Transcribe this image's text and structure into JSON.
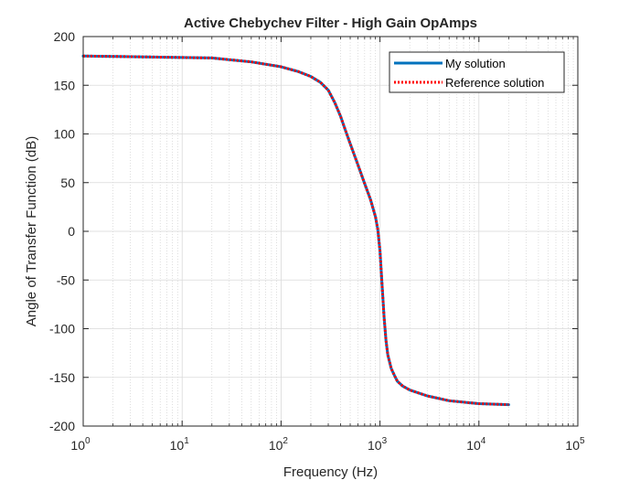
{
  "chart_data": {
    "type": "line",
    "title": "Active Chebychev Filter - High Gain OpAmps",
    "xlabel": "Frequency (Hz)",
    "ylabel": "Angle of Transfer Function (dB)",
    "xscale": "log",
    "xlim": [
      1,
      100000
    ],
    "ylim": [
      -200,
      200
    ],
    "xticks": [
      {
        "value": 1,
        "base": "10",
        "exp": "0"
      },
      {
        "value": 10,
        "base": "10",
        "exp": "1"
      },
      {
        "value": 100,
        "base": "10",
        "exp": "2"
      },
      {
        "value": 1000,
        "base": "10",
        "exp": "3"
      },
      {
        "value": 10000,
        "base": "10",
        "exp": "4"
      },
      {
        "value": 100000,
        "base": "10",
        "exp": "5"
      }
    ],
    "yticks": [
      200,
      150,
      100,
      50,
      0,
      -50,
      -100,
      -150,
      -200
    ],
    "grid": true,
    "minor_grid": true,
    "legend_position": "top-right",
    "series": [
      {
        "name": "My solution",
        "color": "#0072BD",
        "style": "solid",
        "x": [
          1,
          2,
          5,
          10,
          20,
          50,
          100,
          150,
          200,
          250,
          300,
          350,
          400,
          450,
          500,
          600,
          700,
          800,
          900,
          950,
          1000,
          1050,
          1100,
          1150,
          1200,
          1300,
          1400,
          1500,
          1700,
          2000,
          3000,
          5000,
          10000,
          20000
        ],
        "y": [
          180,
          179.6,
          179,
          178.5,
          178,
          174,
          169,
          164,
          159,
          153,
          145,
          132,
          118,
          103,
          90,
          68,
          49,
          33,
          15,
          2,
          -20,
          -55,
          -88,
          -112,
          -127,
          -141,
          -148,
          -154,
          -159,
          -163,
          -169,
          -174,
          -177,
          -178
        ]
      },
      {
        "name": "Reference solution",
        "color": "#FF0000",
        "style": "dotted",
        "x": [
          1,
          2,
          5,
          10,
          20,
          50,
          100,
          150,
          200,
          250,
          300,
          350,
          400,
          450,
          500,
          600,
          700,
          800,
          900,
          950,
          1000,
          1050,
          1100,
          1150,
          1200,
          1300,
          1400,
          1500,
          1700,
          2000,
          3000,
          5000,
          10000,
          20000
        ],
        "y": [
          180,
          179.6,
          179,
          178.5,
          178,
          174,
          169,
          164,
          159,
          153,
          145,
          132,
          118,
          103,
          90,
          68,
          49,
          33,
          15,
          2,
          -20,
          -55,
          -88,
          -112,
          -127,
          -141,
          -148,
          -154,
          -159,
          -163,
          -169,
          -174,
          -177,
          -178
        ]
      }
    ]
  }
}
